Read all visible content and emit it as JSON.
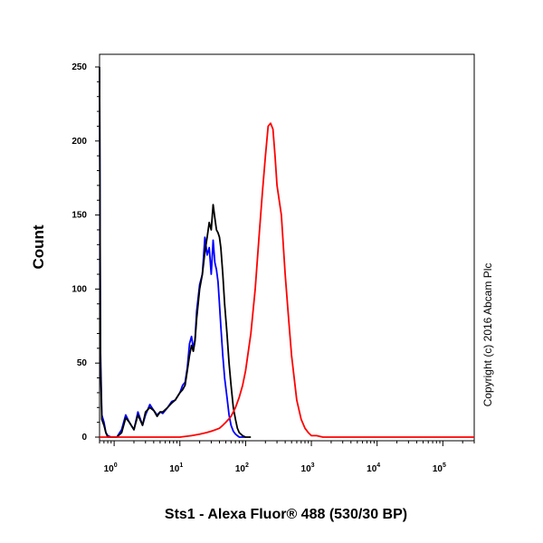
{
  "chart_data": {
    "type": "line",
    "xlabel": "Sts1 - Alexa Fluor® 488 (530/30 BP)",
    "ylabel": "Count",
    "annotation": "Copyright (c) 2016 Abcam Plc",
    "x_scale": "log",
    "xlim": [
      0.6,
      300000
    ],
    "ylim": [
      0,
      255
    ],
    "y_ticks": [
      0,
      50,
      100,
      150,
      200,
      250
    ],
    "x_ticks": [
      {
        "value": 1,
        "base": "10",
        "exp": "0"
      },
      {
        "value": 10,
        "base": "10",
        "exp": "1"
      },
      {
        "value": 100,
        "base": "10",
        "exp": "2"
      },
      {
        "value": 1000,
        "base": "10",
        "exp": "3"
      },
      {
        "value": 10000,
        "base": "10",
        "exp": "4"
      },
      {
        "value": 100000,
        "base": "10",
        "exp": "5"
      }
    ],
    "grid": false,
    "series": [
      {
        "color": "#0000ff",
        "x": [
          0.6,
          0.62,
          0.65,
          0.7,
          0.75,
          0.8,
          0.9,
          1.0,
          1.1,
          1.3,
          1.5,
          1.7,
          2.0,
          2.3,
          2.7,
          3.0,
          3.5,
          4.0,
          4.5,
          5.0,
          5.5,
          6.5,
          7.5,
          8.5,
          10,
          11,
          12,
          13,
          14,
          15,
          16,
          17,
          18,
          20,
          22,
          24,
          26,
          28,
          30,
          32,
          34,
          36,
          38,
          40,
          42,
          45,
          48,
          52,
          56,
          60,
          65,
          70,
          75,
          80,
          90,
          100
        ],
        "y": [
          248,
          60,
          15,
          10,
          3,
          1,
          0,
          0,
          0,
          5,
          15,
          10,
          5,
          17,
          8,
          15,
          22,
          18,
          15,
          17,
          16,
          20,
          24,
          25,
          30,
          35,
          37,
          47,
          63,
          68,
          60,
          66,
          85,
          103,
          110,
          135,
          123,
          128,
          110,
          133,
          118,
          113,
          105,
          90,
          75,
          55,
          40,
          27,
          15,
          8,
          4,
          2,
          1,
          0,
          0,
          0
        ]
      },
      {
        "color": "#000000",
        "x": [
          0.6,
          0.62,
          0.65,
          0.7,
          0.75,
          0.8,
          0.9,
          1.0,
          1.1,
          1.3,
          1.5,
          1.7,
          2.0,
          2.3,
          2.7,
          3.0,
          3.5,
          4.0,
          4.5,
          5.0,
          5.5,
          6.5,
          7.5,
          8.5,
          10,
          11,
          12,
          13,
          14,
          15,
          16,
          17,
          18,
          20,
          22,
          24,
          26,
          28,
          30,
          32,
          34,
          36,
          38,
          40,
          42,
          45,
          48,
          52,
          56,
          60,
          65,
          70,
          75,
          80,
          90,
          100,
          120
        ],
        "y": [
          250,
          50,
          12,
          8,
          3,
          0,
          0,
          0,
          0,
          3,
          13,
          10,
          5,
          15,
          8,
          17,
          20,
          18,
          14,
          17,
          17,
          20,
          23,
          25,
          30,
          32,
          35,
          45,
          55,
          62,
          58,
          65,
          80,
          100,
          110,
          125,
          135,
          145,
          140,
          157,
          148,
          140,
          138,
          135,
          128,
          110,
          90,
          70,
          50,
          35,
          20,
          12,
          6,
          3,
          1,
          0,
          0
        ]
      },
      {
        "color": "#ff0000",
        "x": [
          0.6,
          1,
          2,
          5,
          8,
          10,
          15,
          20,
          25,
          30,
          35,
          40,
          45,
          50,
          55,
          60,
          70,
          80,
          90,
          100,
          120,
          140,
          160,
          180,
          200,
          220,
          240,
          260,
          280,
          300,
          350,
          400,
          450,
          500,
          600,
          700,
          800,
          900,
          1000,
          1200,
          1500,
          2000,
          5000,
          100000,
          300000
        ],
        "y": [
          0,
          0,
          0,
          0,
          0,
          0,
          1,
          2,
          3,
          4,
          5,
          6,
          8,
          10,
          12,
          14,
          20,
          27,
          35,
          45,
          70,
          100,
          135,
          165,
          190,
          210,
          212,
          208,
          190,
          170,
          150,
          110,
          80,
          55,
          25,
          12,
          6,
          3,
          1,
          1,
          0,
          0,
          0,
          0,
          0
        ]
      }
    ]
  }
}
